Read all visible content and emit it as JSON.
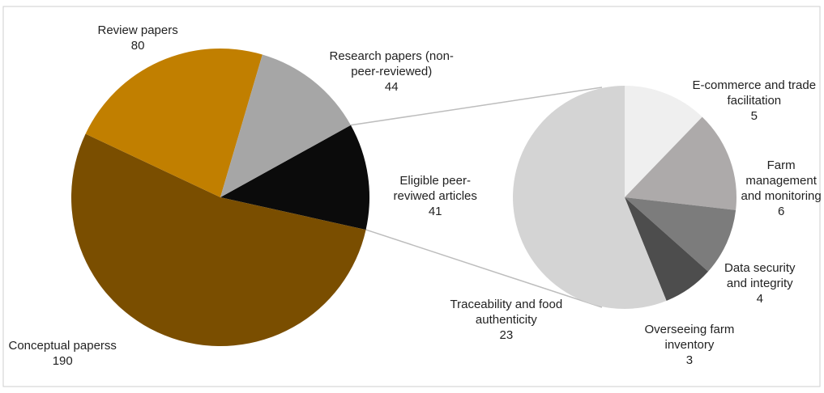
{
  "chart_data": [
    {
      "type": "pie",
      "title": "",
      "slices": [
        {
          "label_lines": [
            "Eligible peer-",
            "reviwed articles"
          ],
          "value": 41,
          "value_text": "41",
          "color": "#0b0b0b"
        },
        {
          "label_lines": [
            "Conceptual paperss"
          ],
          "value": 190,
          "value_text": "190",
          "color": "#7a4e00"
        },
        {
          "label_lines": [
            "Review  papers"
          ],
          "value": 80,
          "value_text": "80",
          "color": "#c17f00"
        },
        {
          "label_lines": [
            "Research papers (non-",
            "peer-reviewed)"
          ],
          "value": 44,
          "value_text": "44",
          "color": "#a6a6a6"
        }
      ],
      "start_angle_deg": 61,
      "direction": "clockwise"
    },
    {
      "type": "pie",
      "title": "",
      "breakdown_of": "Eligible peer-reviwed articles",
      "slices": [
        {
          "label_lines": [
            "E-commerce and trade",
            "facilitation"
          ],
          "value": 5,
          "value_text": "5",
          "color": "#efefef"
        },
        {
          "label_lines": [
            "Farm",
            "management",
            "and monitoring"
          ],
          "value": 6,
          "value_text": "6",
          "color": "#adaaaa"
        },
        {
          "label_lines": [
            "Data security",
            "and integrity"
          ],
          "value": 4,
          "value_text": "4",
          "color": "#7c7c7c"
        },
        {
          "label_lines": [
            "Overseeing farm",
            "inventory"
          ],
          "value": 3,
          "value_text": "3",
          "color": "#4d4d4d"
        },
        {
          "label_lines": [
            "Traceability and food",
            "authenticity"
          ],
          "value": 23,
          "value_text": "23",
          "color": "#d4d4d4"
        }
      ],
      "start_angle_deg": 0,
      "direction": "clockwise"
    }
  ],
  "colors": {
    "frame": "#cfcfcf",
    "connector": "#bdbdbd",
    "text": "#222222"
  }
}
